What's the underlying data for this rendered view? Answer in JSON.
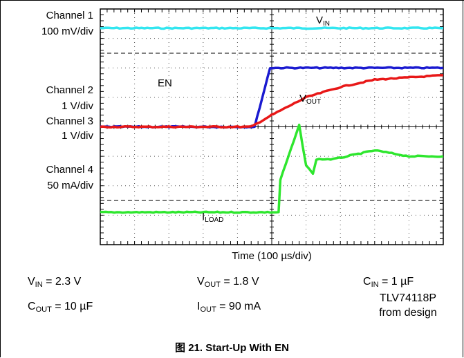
{
  "channels": {
    "ch1_name": "Channel 1",
    "ch1_scale": "100 mV/div",
    "ch2_name": "Channel 2",
    "ch2_scale": "1 V/div",
    "ch3_name": "Channel 3",
    "ch3_scale": "1 V/div",
    "ch4_name": "Channel 4",
    "ch4_scale": "50 mA/div"
  },
  "traces": {
    "vin": {
      "main": "V",
      "sub": "IN",
      "color": "#33e6f0"
    },
    "en": {
      "main": "EN",
      "color": "#1a1ad0"
    },
    "vout": {
      "main": "V",
      "sub": "OUT",
      "color": "#e81818"
    },
    "iload": {
      "main": "I",
      "sub": "LOAD",
      "color": "#2ee62e"
    }
  },
  "params": {
    "vin": {
      "main": "V",
      "sub": "IN",
      "rest": " = 2.3 V"
    },
    "vout": {
      "main": "V",
      "sub": "OUT",
      "rest": " = 1.8 V"
    },
    "cin": {
      "main": "C",
      "sub": "IN",
      "rest": " = 1 µF"
    },
    "cout": {
      "main": "C",
      "sub": "OUT",
      "rest": " = 10 µF"
    },
    "iout": {
      "main": "I",
      "sub": "OUT",
      "rest": " = 90 mA"
    },
    "design_line1": "TLV74118P",
    "design_line2": "from design"
  },
  "caption": "图 21. Start-Up With EN",
  "chart_data": {
    "type": "line",
    "title": "",
    "xlabel": "Time (100 µs/div)",
    "grid": true,
    "x_divisions": 10,
    "y_divisions": 8,
    "xlim": [
      0,
      1000
    ],
    "x_unit": "µs",
    "series": [
      {
        "name": "VIN",
        "channel": 1,
        "scale": "100 mV/div",
        "color": "#33e6f0",
        "x": [
          0,
          1000
        ],
        "y_div": [
          7.35,
          7.35
        ]
      },
      {
        "name": "EN",
        "channel": 2,
        "scale": "1 V/div",
        "color": "#1a1ad0",
        "x": [
          0,
          450,
          495,
          1000
        ],
        "y_div": [
          4.0,
          4.0,
          6.0,
          6.0
        ]
      },
      {
        "name": "VOUT",
        "channel": 2,
        "scale": "1 V/div",
        "color": "#e81818",
        "x": [
          0,
          440,
          500,
          600,
          700,
          800,
          1000
        ],
        "y_div": [
          4.0,
          4.0,
          4.4,
          5.0,
          5.35,
          5.6,
          5.75
        ]
      },
      {
        "name": "ILOAD",
        "channel": 4,
        "scale": "50 mA/div",
        "color": "#2ee62e",
        "x": [
          0,
          520,
          525,
          580,
          600,
          620,
          630,
          680,
          800,
          900,
          1000
        ],
        "y_div": [
          1.1,
          1.1,
          2.2,
          4.05,
          2.7,
          2.4,
          2.9,
          2.9,
          3.2,
          3.0,
          3.0
        ]
      }
    ]
  }
}
